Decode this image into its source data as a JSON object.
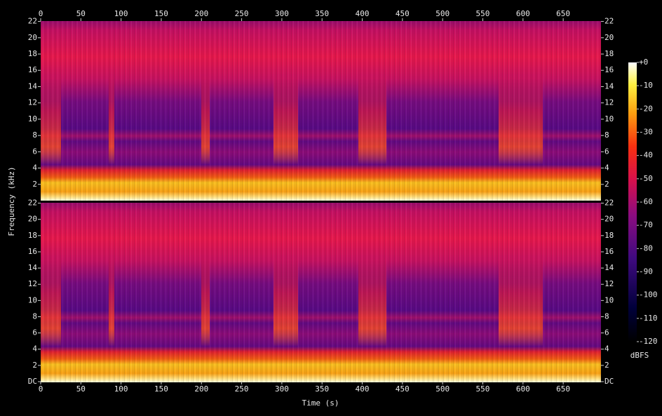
{
  "chart_data": {
    "type": "spectrogram",
    "x_label": "Time (s)",
    "y_label": "Frequency (kHz)",
    "xlim": [
      0,
      697
    ],
    "xticks": [
      0,
      50,
      100,
      150,
      200,
      250,
      300,
      350,
      400,
      450,
      500,
      550,
      600,
      650
    ],
    "channels": [
      {
        "ylim": [
          0,
          22.05
        ],
        "yticks": [
          2,
          4,
          6,
          8,
          10,
          12,
          14,
          16,
          18,
          20,
          22
        ]
      },
      {
        "ylim": [
          0,
          22.05
        ],
        "yticks": [
          {
            "value": 0,
            "label": "DC"
          },
          2,
          4,
          6,
          8,
          10,
          12,
          14,
          16,
          18,
          20,
          22
        ]
      }
    ],
    "colorbar": {
      "label": "dBFS",
      "lim": [
        -120,
        0
      ],
      "ticks": [
        {
          "value": 0,
          "label": "+0"
        },
        -10,
        -20,
        -30,
        -40,
        -50,
        -60,
        -70,
        -80,
        -90,
        -100,
        -110,
        -120
      ]
    }
  }
}
